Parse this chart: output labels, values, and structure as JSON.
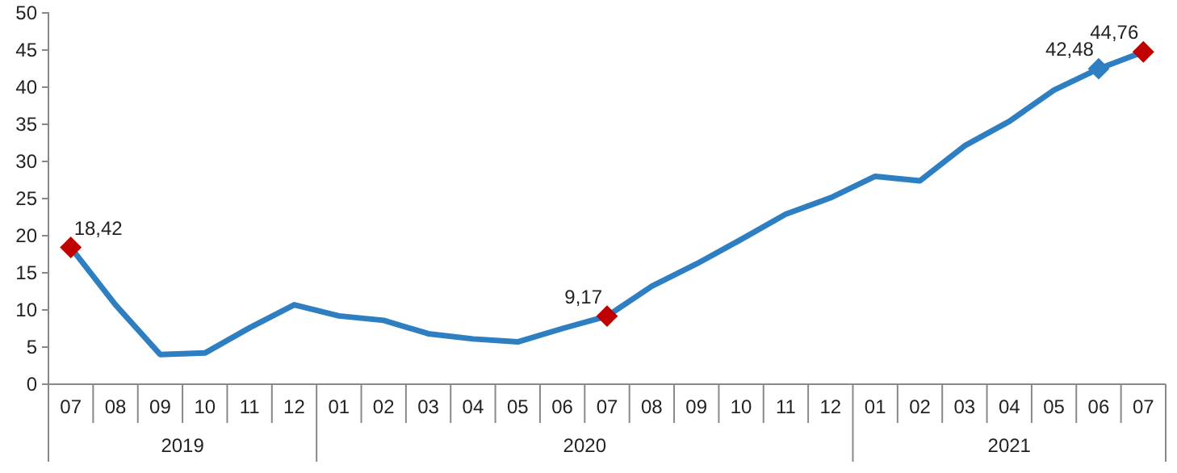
{
  "chart_data": {
    "type": "line",
    "categories": [
      "07",
      "08",
      "09",
      "10",
      "11",
      "12",
      "01",
      "02",
      "03",
      "04",
      "05",
      "06",
      "07",
      "08",
      "09",
      "10",
      "11",
      "12",
      "01",
      "02",
      "03",
      "04",
      "05",
      "06",
      "07"
    ],
    "series": [
      {
        "color": "#2e7fc1",
        "values": [
          18.42,
          10.7,
          4.0,
          4.2,
          7.6,
          10.7,
          9.2,
          8.6,
          6.8,
          6.1,
          5.7,
          7.5,
          9.17,
          13.2,
          16.2,
          19.5,
          22.9,
          25.1,
          28.0,
          27.4,
          32.1,
          35.4,
          39.6,
          42.48,
          44.76
        ],
        "value_labels": [
          "18,42",
          null,
          null,
          null,
          null,
          null,
          null,
          null,
          null,
          null,
          null,
          null,
          "9,17",
          null,
          null,
          null,
          null,
          null,
          null,
          null,
          null,
          null,
          null,
          "42,48",
          "44,76"
        ]
      },
      {
        "type": "scatter",
        "marker": "diamond",
        "colors": [
          "#c00000",
          null,
          null,
          null,
          null,
          null,
          null,
          null,
          null,
          null,
          null,
          null,
          "#c00000",
          null,
          null,
          null,
          null,
          null,
          null,
          null,
          null,
          null,
          null,
          "#2e7fc1",
          "#c00000"
        ],
        "values": [
          18.42,
          null,
          null,
          null,
          null,
          null,
          null,
          null,
          null,
          null,
          null,
          null,
          9.17,
          null,
          null,
          null,
          null,
          null,
          null,
          null,
          null,
          null,
          null,
          42.48,
          44.76
        ]
      }
    ],
    "ylim": [
      0,
      50
    ],
    "yticks": [
      0,
      5,
      10,
      15,
      20,
      25,
      30,
      35,
      40,
      45,
      50
    ],
    "grid": false,
    "line_style": "solid",
    "annotations": [
      "2019",
      "2020",
      "2021"
    ]
  }
}
